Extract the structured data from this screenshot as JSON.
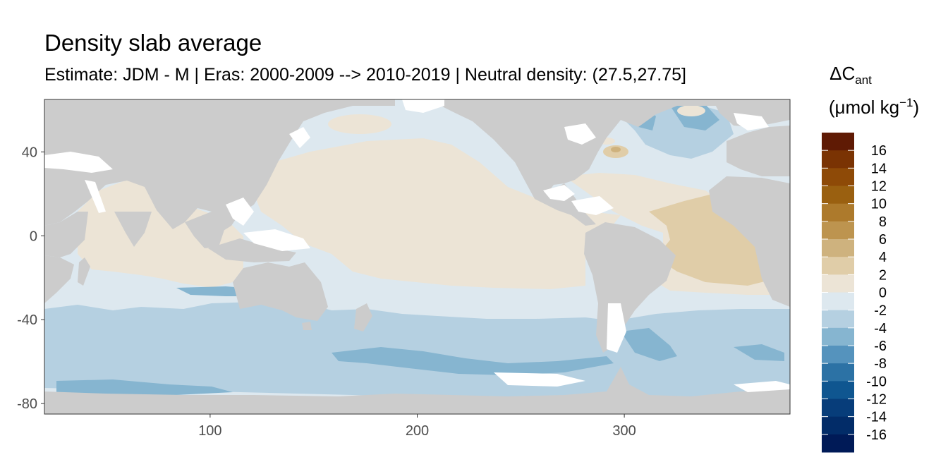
{
  "title": "Density slab average",
  "subtitle": "Estimate: JDM - M | Eras: 2000-2009 --> 2010-2019 | Neutral density: (27.5,27.75]",
  "legend": {
    "title_line1_prefix": "ΔC",
    "title_line1_sub": "ant",
    "title_line2_prefix": "(μmol kg",
    "title_line2_sup": "−1",
    "title_line2_suffix": ")",
    "labels": [
      "16",
      "14",
      "12",
      "10",
      "8",
      "6",
      "4",
      "2",
      "0",
      "-2",
      "-4",
      "-6",
      "-8",
      "-10",
      "-12",
      "-14",
      "-16"
    ],
    "colors": [
      "#5f1a04",
      "#7a3303",
      "#8e4a07",
      "#9a6010",
      "#ad7a2c",
      "#bd944f",
      "#ceb27e",
      "#e0cda8",
      "#ece4d6",
      "#dde8ef",
      "#b5d0e1",
      "#86b5d0",
      "#5593bd",
      "#2c72a5",
      "#0f5690",
      "#073d7a",
      "#022c68",
      "#001a57"
    ]
  },
  "chart_data": {
    "type": "heatmap",
    "x_ticks": [
      100,
      200,
      300
    ],
    "y_ticks": [
      40,
      0,
      -40,
      -80
    ],
    "xlim": [
      20,
      380
    ],
    "ylim": [
      -85,
      65
    ],
    "colors": {
      "land": "#cccccc",
      "no_data": "#ffffff",
      "bin_0_2": "#ece4d6",
      "bin_2_4": "#e0cda8",
      "bin_4_6": "#ceb27e",
      "bin_m2_0": "#dde8ef",
      "bin_m4_m2": "#b5d0e1",
      "bin_m6_m4": "#86b5d0",
      "bin_m8_m6": "#5593bd"
    }
  }
}
